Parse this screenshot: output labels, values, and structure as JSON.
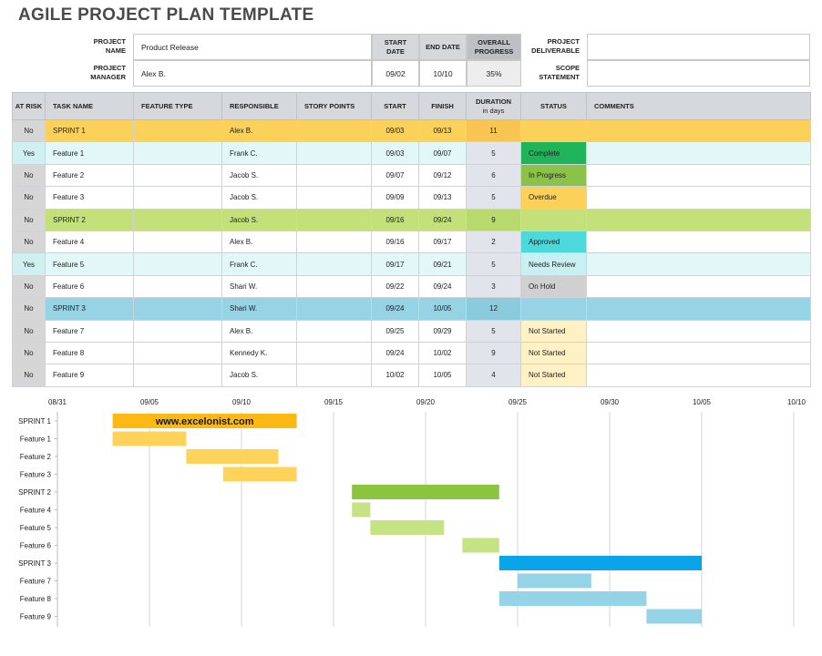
{
  "title": "AGILE PROJECT PLAN TEMPLATE",
  "info": {
    "project_name_label": "PROJECT NAME",
    "project_name": "Product Release",
    "project_manager_label": "PROJECT MANAGER",
    "project_manager": "Alex B.",
    "start_date_label": "START DATE",
    "start_date": "09/02",
    "end_date_label": "END DATE",
    "end_date": "10/10",
    "overall_progress_label": "OVERALL PROGRESS",
    "overall_progress": "35%",
    "deliverable_label": "PROJECT DELIVERABLE",
    "deliverable": "",
    "scope_label": "SCOPE STATEMENT",
    "scope": ""
  },
  "table": {
    "headers": {
      "at_risk": "AT RISK",
      "task_name": "TASK NAME",
      "feature_type": "FEATURE TYPE",
      "responsible": "RESPONSIBLE",
      "story_points": "STORY POINTS",
      "start": "START",
      "finish": "FINISH",
      "duration": "DURATION",
      "duration_sub": "in days",
      "status": "STATUS",
      "comments": "COMMENTS"
    },
    "rows": [
      {
        "risk": "No",
        "task": "SPRINT 1",
        "type": "",
        "resp": "Alex B.",
        "pts": "",
        "start": "09/03",
        "finish": "09/13",
        "dur": "11",
        "status": "",
        "comments": ""
      },
      {
        "risk": "Yes",
        "task": "Feature 1",
        "type": "",
        "resp": "Frank C.",
        "pts": "",
        "start": "09/03",
        "finish": "09/07",
        "dur": "5",
        "status": "Complete",
        "comments": ""
      },
      {
        "risk": "No",
        "task": "Feature 2",
        "type": "",
        "resp": "Jacob S.",
        "pts": "",
        "start": "09/07",
        "finish": "09/12",
        "dur": "6",
        "status": "In Progress",
        "comments": ""
      },
      {
        "risk": "No",
        "task": "Feature 3",
        "type": "",
        "resp": "Jacob S.",
        "pts": "",
        "start": "09/09",
        "finish": "09/13",
        "dur": "5",
        "status": "Overdue",
        "comments": ""
      },
      {
        "risk": "No",
        "task": "SPRINT 2",
        "type": "",
        "resp": "Jacob S.",
        "pts": "",
        "start": "09/16",
        "finish": "09/24",
        "dur": "9",
        "status": "",
        "comments": ""
      },
      {
        "risk": "No",
        "task": "Feature 4",
        "type": "",
        "resp": "Alex B.",
        "pts": "",
        "start": "09/16",
        "finish": "09/17",
        "dur": "2",
        "status": "Approved",
        "comments": ""
      },
      {
        "risk": "Yes",
        "task": "Feature 5",
        "type": "",
        "resp": "Frank C.",
        "pts": "",
        "start": "09/17",
        "finish": "09/21",
        "dur": "5",
        "status": "Needs Review",
        "comments": ""
      },
      {
        "risk": "No",
        "task": "Feature 6",
        "type": "",
        "resp": "Shari W.",
        "pts": "",
        "start": "09/22",
        "finish": "09/24",
        "dur": "3",
        "status": "On Hold",
        "comments": ""
      },
      {
        "risk": "No",
        "task": "SPRINT 3",
        "type": "",
        "resp": "Shari W.",
        "pts": "",
        "start": "09/24",
        "finish": "10/05",
        "dur": "12",
        "status": "",
        "comments": ""
      },
      {
        "risk": "No",
        "task": "Feature 7",
        "type": "",
        "resp": "Alex B.",
        "pts": "",
        "start": "09/25",
        "finish": "09/29",
        "dur": "5",
        "status": "Not Started",
        "comments": ""
      },
      {
        "risk": "No",
        "task": "Feature 8",
        "type": "",
        "resp": "Kennedy K.",
        "pts": "",
        "start": "09/24",
        "finish": "10/02",
        "dur": "9",
        "status": "Not Started",
        "comments": ""
      },
      {
        "risk": "No",
        "task": "Feature 9",
        "type": "",
        "resp": "Jacob S.",
        "pts": "",
        "start": "10/02",
        "finish": "10/05",
        "dur": "4",
        "status": "Not Started",
        "comments": ""
      }
    ],
    "status_colors": {
      "Complete": "#1fb35a",
      "In Progress": "#8bc34a",
      "Overdue": "#fcd15a",
      "Approved": "#4dd9dc",
      "Needs Review": "#c8f0f2",
      "On Hold": "#d0d0d0",
      "Not Started": "#fff1c6"
    }
  },
  "chart_data": {
    "type": "bar",
    "orientation": "horizontal-gantt",
    "x_ticks": [
      "08/31",
      "09/05",
      "09/10",
      "09/15",
      "09/20",
      "09/25",
      "09/30",
      "10/05",
      "10/10"
    ],
    "tasks": [
      {
        "name": "SPRINT 1",
        "start": "09/03",
        "end": "09/13",
        "color": "#fdb913"
      },
      {
        "name": "Feature 1",
        "start": "09/03",
        "end": "09/07",
        "color": "#ffd35a"
      },
      {
        "name": "Feature 2",
        "start": "09/07",
        "end": "09/12",
        "color": "#ffd35a"
      },
      {
        "name": "Feature 3",
        "start": "09/09",
        "end": "09/13",
        "color": "#ffd35a"
      },
      {
        "name": "SPRINT 2",
        "start": "09/16",
        "end": "09/24",
        "color": "#8bc53f"
      },
      {
        "name": "Feature 4",
        "start": "09/16",
        "end": "09/17",
        "color": "#c5e384"
      },
      {
        "name": "Feature 5",
        "start": "09/17",
        "end": "09/21",
        "color": "#c5e384"
      },
      {
        "name": "Feature 6",
        "start": "09/22",
        "end": "09/24",
        "color": "#c5e384"
      },
      {
        "name": "SPRINT 3",
        "start": "09/24",
        "end": "10/05",
        "color": "#0aa5e8"
      },
      {
        "name": "Feature 7",
        "start": "09/25",
        "end": "09/29",
        "color": "#95d3e7"
      },
      {
        "name": "Feature 8",
        "start": "09/24",
        "end": "10/02",
        "color": "#95d3e7"
      },
      {
        "name": "Feature 9",
        "start": "10/02",
        "end": "10/05",
        "color": "#95d3e7"
      }
    ],
    "annotation": "www.excelonist.com"
  }
}
